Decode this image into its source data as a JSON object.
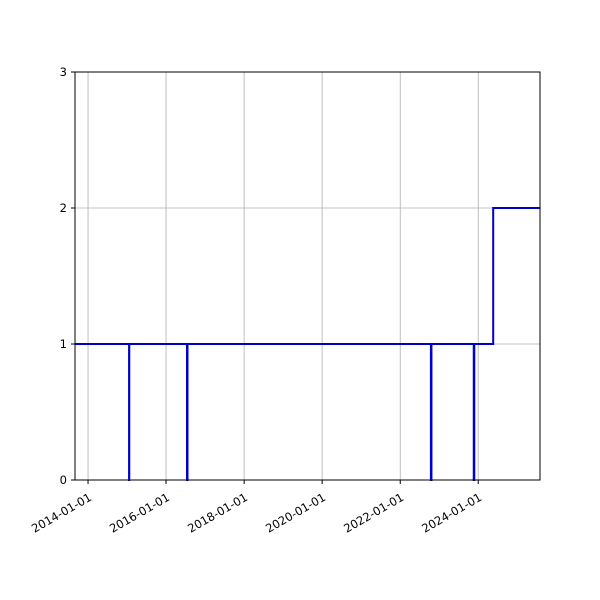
{
  "chart_data": {
    "type": "line",
    "step": "post",
    "title": "",
    "xlabel": "",
    "ylabel": "",
    "x_axis_type": "date",
    "xlim": [
      "2013-09-01",
      "2025-08-01"
    ],
    "ylim": [
      0,
      3
    ],
    "x_ticks": [
      "2014-01-01",
      "2016-01-01",
      "2018-01-01",
      "2020-01-01",
      "2022-01-01",
      "2024-01-01"
    ],
    "y_ticks": [
      0,
      1,
      2,
      3
    ],
    "grid": true,
    "legend": "none",
    "series": [
      {
        "color": "#0000cc",
        "points": [
          {
            "x": "2013-09-01",
            "y": 1
          },
          {
            "x": "2015-01-20",
            "y": 0
          },
          {
            "x": "2015-01-22",
            "y": 1
          },
          {
            "x": "2016-07-15",
            "y": 0
          },
          {
            "x": "2016-07-20",
            "y": 1
          },
          {
            "x": "2022-10-15",
            "y": 0
          },
          {
            "x": "2022-10-20",
            "y": 1
          },
          {
            "x": "2023-11-20",
            "y": 0
          },
          {
            "x": "2023-11-25",
            "y": 1
          },
          {
            "x": "2024-05-20",
            "y": 2
          },
          {
            "x": "2025-08-01",
            "y": 2
          }
        ]
      }
    ]
  }
}
